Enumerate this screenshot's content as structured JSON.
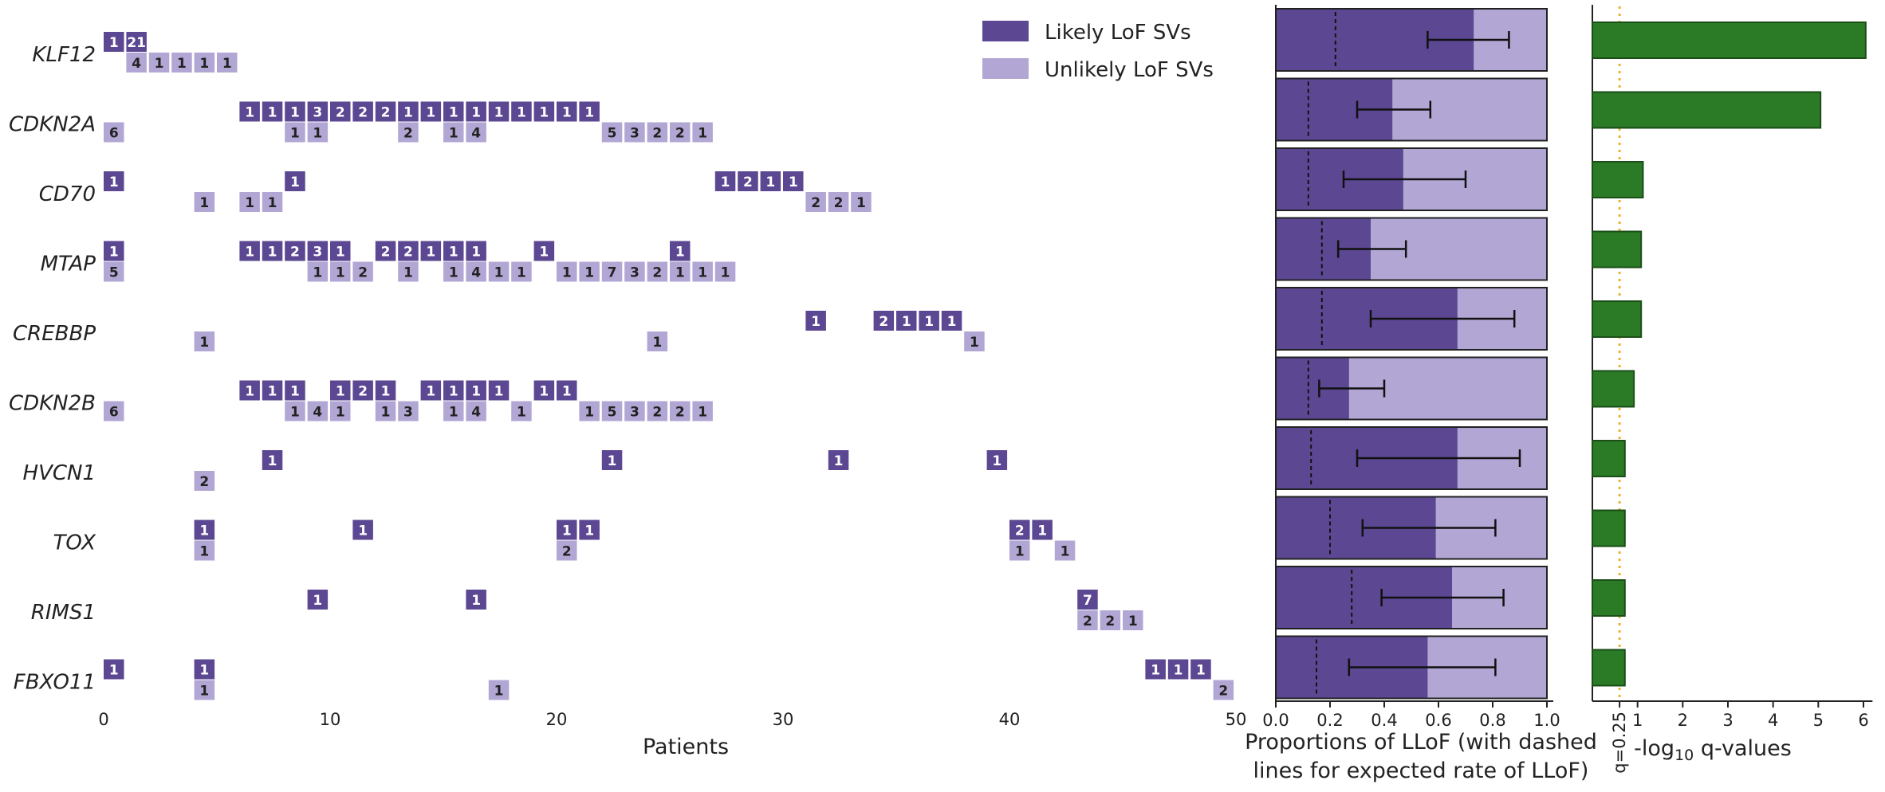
{
  "colors": {
    "likely": "#5b4792",
    "unlikely": "#b2a7d4",
    "green": "#2a7a26",
    "green_edge": "#1b4f18",
    "threshold": "#f0b030",
    "axis": "#222222"
  },
  "legend": [
    "Likely LoF SVs",
    "Unlikely LoF SVs"
  ],
  "chart_data": [
    {
      "type": "table",
      "xlabel": "Patients",
      "xticks": [
        "0",
        "10",
        "20",
        "30",
        "40",
        "50"
      ],
      "xlim": [
        0,
        50
      ],
      "genes": [
        "KLF12",
        "CDKN2A",
        "CD70",
        "MTAP",
        "CREBBP",
        "CDKN2B",
        "HVCN1",
        "TOX",
        "RIMS1",
        "FBXO11"
      ],
      "likely_counts": [
        [
          [
            0,
            1
          ],
          [
            1,
            21
          ]
        ],
        [
          [
            6,
            1
          ],
          [
            7,
            1
          ],
          [
            8,
            1
          ],
          [
            9,
            3
          ],
          [
            10,
            2
          ],
          [
            11,
            2
          ],
          [
            12,
            2
          ],
          [
            13,
            1
          ],
          [
            14,
            1
          ],
          [
            15,
            1
          ],
          [
            16,
            1
          ],
          [
            17,
            1
          ],
          [
            18,
            1
          ],
          [
            19,
            1
          ],
          [
            20,
            1
          ],
          [
            21,
            1
          ]
        ],
        [
          [
            0,
            1
          ],
          [
            8,
            1
          ],
          [
            27,
            1
          ],
          [
            28,
            2
          ],
          [
            29,
            1
          ],
          [
            30,
            1
          ]
        ],
        [
          [
            0,
            1
          ],
          [
            6,
            1
          ],
          [
            7,
            1
          ],
          [
            8,
            2
          ],
          [
            9,
            3
          ],
          [
            10,
            1
          ],
          [
            12,
            2
          ],
          [
            13,
            2
          ],
          [
            14,
            1
          ],
          [
            15,
            1
          ],
          [
            16,
            1
          ],
          [
            19,
            1
          ],
          [
            25,
            1
          ]
        ],
        [
          [
            31,
            1
          ],
          [
            34,
            2
          ],
          [
            35,
            1
          ],
          [
            36,
            1
          ],
          [
            37,
            1
          ]
        ],
        [
          [
            6,
            1
          ],
          [
            7,
            1
          ],
          [
            8,
            1
          ],
          [
            10,
            1
          ],
          [
            11,
            2
          ],
          [
            12,
            1
          ],
          [
            14,
            1
          ],
          [
            15,
            1
          ],
          [
            16,
            1
          ],
          [
            17,
            1
          ],
          [
            19,
            1
          ],
          [
            20,
            1
          ]
        ],
        [
          [
            7,
            1
          ],
          [
            22,
            1
          ],
          [
            32,
            1
          ],
          [
            39,
            1
          ]
        ],
        [
          [
            4,
            1
          ],
          [
            11,
            1
          ],
          [
            20,
            1
          ],
          [
            21,
            1
          ],
          [
            40,
            2
          ],
          [
            41,
            1
          ]
        ],
        [
          [
            9,
            1
          ],
          [
            16,
            1
          ],
          [
            43,
            7
          ]
        ],
        [
          [
            0,
            1
          ],
          [
            4,
            1
          ],
          [
            46,
            1
          ],
          [
            47,
            1
          ],
          [
            48,
            1
          ]
        ]
      ],
      "unlikely_counts": [
        [
          [
            1,
            4
          ],
          [
            2,
            1
          ],
          [
            3,
            1
          ],
          [
            4,
            1
          ],
          [
            5,
            1
          ]
        ],
        [
          [
            0,
            6
          ],
          [
            8,
            1
          ],
          [
            9,
            1
          ],
          [
            13,
            2
          ],
          [
            15,
            1
          ],
          [
            16,
            4
          ],
          [
            22,
            5
          ],
          [
            23,
            3
          ],
          [
            24,
            2
          ],
          [
            25,
            2
          ],
          [
            26,
            1
          ]
        ],
        [
          [
            4,
            1
          ],
          [
            6,
            1
          ],
          [
            7,
            1
          ],
          [
            31,
            2
          ],
          [
            32,
            2
          ],
          [
            33,
            1
          ]
        ],
        [
          [
            0,
            5
          ],
          [
            9,
            1
          ],
          [
            10,
            1
          ],
          [
            11,
            2
          ],
          [
            13,
            1
          ],
          [
            15,
            1
          ],
          [
            16,
            4
          ],
          [
            17,
            1
          ],
          [
            18,
            1
          ],
          [
            20,
            1
          ],
          [
            21,
            1
          ],
          [
            22,
            7
          ],
          [
            23,
            3
          ],
          [
            24,
            2
          ],
          [
            25,
            1
          ],
          [
            26,
            1
          ],
          [
            27,
            1
          ]
        ],
        [
          [
            4,
            1
          ],
          [
            24,
            1
          ],
          [
            38,
            1
          ]
        ],
        [
          [
            0,
            6
          ],
          [
            8,
            1
          ],
          [
            9,
            4
          ],
          [
            10,
            1
          ],
          [
            12,
            1
          ],
          [
            13,
            3
          ],
          [
            15,
            1
          ],
          [
            16,
            4
          ],
          [
            18,
            1
          ],
          [
            21,
            1
          ],
          [
            22,
            5
          ],
          [
            23,
            3
          ],
          [
            24,
            2
          ],
          [
            25,
            2
          ],
          [
            26,
            1
          ]
        ],
        [
          [
            4,
            2
          ]
        ],
        [
          [
            4,
            1
          ],
          [
            20,
            2
          ],
          [
            40,
            1
          ],
          [
            42,
            1
          ]
        ],
        [
          [
            43,
            2
          ],
          [
            44,
            2
          ],
          [
            45,
            1
          ]
        ],
        [
          [
            4,
            1
          ],
          [
            17,
            1
          ],
          [
            49,
            2
          ]
        ]
      ]
    },
    {
      "type": "bar",
      "xlabel": "Proportions of LLoF (with dashed lines for expected rate of LLoF)",
      "xticks": [
        "0.0",
        "0.2",
        "0.4",
        "0.6",
        "0.8",
        "1.0"
      ],
      "xlim": [
        0,
        1
      ],
      "categories": [
        "KLF12",
        "CDKN2A",
        "CD70",
        "MTAP",
        "CREBBP",
        "CDKN2B",
        "HVCN1",
        "TOX",
        "RIMS1",
        "FBXO11"
      ],
      "proportion": [
        0.73,
        0.43,
        0.47,
        0.35,
        0.67,
        0.27,
        0.67,
        0.59,
        0.65,
        0.56
      ],
      "ci_low": [
        0.56,
        0.3,
        0.25,
        0.23,
        0.35,
        0.16,
        0.3,
        0.32,
        0.39,
        0.27
      ],
      "ci_high": [
        0.86,
        0.57,
        0.7,
        0.48,
        0.88,
        0.4,
        0.9,
        0.81,
        0.84,
        0.81
      ],
      "expected": [
        0.22,
        0.12,
        0.12,
        0.17,
        0.17,
        0.12,
        0.13,
        0.2,
        0.28,
        0.15
      ]
    },
    {
      "type": "bar",
      "xlabel_pre": "-log",
      "xlabel_sub": "10",
      "xlabel_post": " q-values",
      "xticks": [
        "1",
        "2",
        "3",
        "4",
        "5",
        "6"
      ],
      "threshold_label": "q=0.25",
      "threshold": 0.602,
      "xlim": [
        0,
        6.2
      ],
      "categories": [
        "KLF12",
        "CDKN2A",
        "CD70",
        "MTAP",
        "CREBBP",
        "CDKN2B",
        "HVCN1",
        "TOX",
        "RIMS1",
        "FBXO11"
      ],
      "values": [
        6.05,
        5.05,
        1.12,
        1.08,
        1.08,
        0.92,
        0.72,
        0.72,
        0.72,
        0.72
      ]
    }
  ]
}
